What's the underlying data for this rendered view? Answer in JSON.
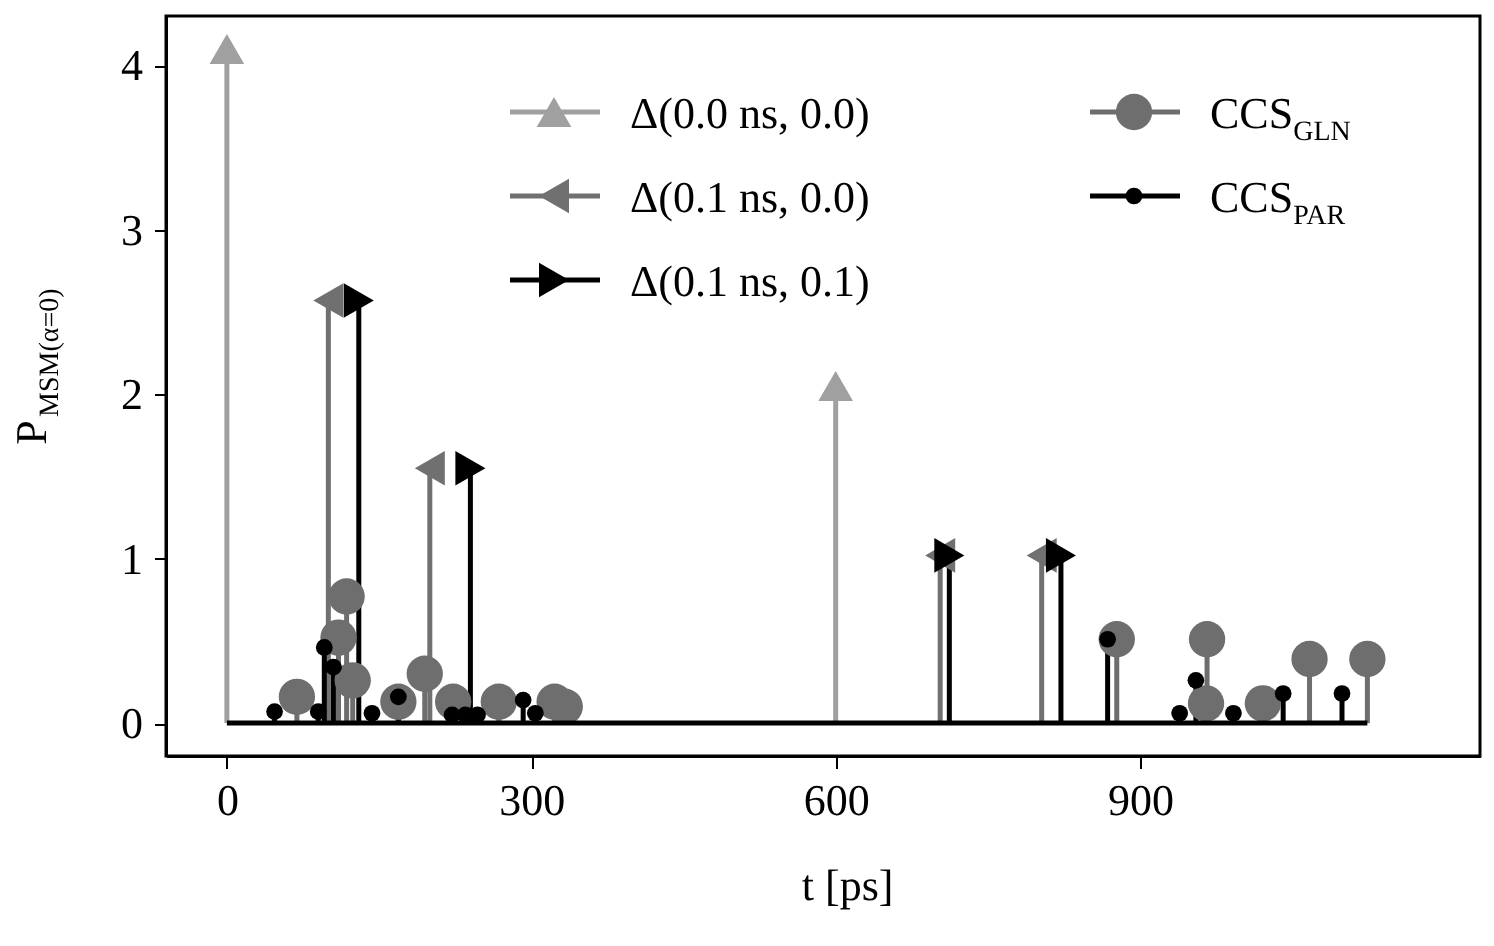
{
  "chart_data": {
    "type": "lollipop",
    "xlabel": "t [ps]",
    "ylabel": "P$_{MSM(α=0)}$",
    "xlim": [
      -60,
      1235
    ],
    "ylim": [
      -0.2,
      4.3
    ],
    "xticks": [
      0,
      300,
      600,
      900
    ],
    "yticks": [
      {
        "value": 0,
        "label": "0"
      },
      {
        "value": 1,
        "label": "1"
      },
      {
        "value": 2,
        "label": "2"
      },
      {
        "value": 3,
        "label": "3"
      },
      {
        "value": 4,
        "label": "4"
      }
    ],
    "grid": false,
    "legend": "top right",
    "ref_lines": [
      {
        "axis": "y",
        "value": 0,
        "color": "#000000"
      }
    ],
    "series": [
      {
        "name": "Δ(0.0 ns, 0.0)",
        "color": "#a0a0a0",
        "marker": "triangle-up",
        "x": [
          0,
          600
        ],
        "values": [
          4.1,
          2.05
        ]
      },
      {
        "name": "Δ(0.1 ns, 0.0)",
        "color": "#707070",
        "marker": "triangle-left",
        "x": [
          100,
          200,
          703,
          803
        ],
        "values": [
          2.57,
          1.55,
          1.02,
          1.02
        ]
      },
      {
        "name": "Δ(0.1 ns, 0.1)",
        "color": "#000000",
        "marker": "triangle-right",
        "x": [
          130,
          240,
          712,
          822
        ],
        "values": [
          2.57,
          1.55,
          1.02,
          1.02
        ]
      },
      {
        "name": "CCS$_{GLN}$",
        "color": "#6e6e6e",
        "marker": "circle",
        "x": [
          69,
          110,
          118,
          124,
          169,
          195,
          223,
          268,
          323,
          333,
          877,
          965,
          966,
          1021,
          1067,
          1124
        ],
        "values": [
          0.16,
          0.52,
          0.77,
          0.26,
          0.13,
          0.3,
          0.13,
          0.13,
          0.13,
          0.1,
          0.51,
          0.12,
          0.51,
          0.12,
          0.39,
          0.39
        ]
      },
      {
        "name": "CCS$_{PAR}$",
        "color": "#000000",
        "marker": "circle",
        "x": [
          47,
          90,
          96,
          105,
          143,
          169,
          222,
          235,
          247,
          292,
          304,
          868,
          939,
          955,
          992,
          1041,
          1099
        ],
        "values": [
          0.07,
          0.07,
          0.46,
          0.34,
          0.06,
          0.16,
          0.05,
          0.05,
          0.05,
          0.14,
          0.06,
          0.51,
          0.06,
          0.26,
          0.06,
          0.18,
          0.18
        ]
      }
    ]
  }
}
